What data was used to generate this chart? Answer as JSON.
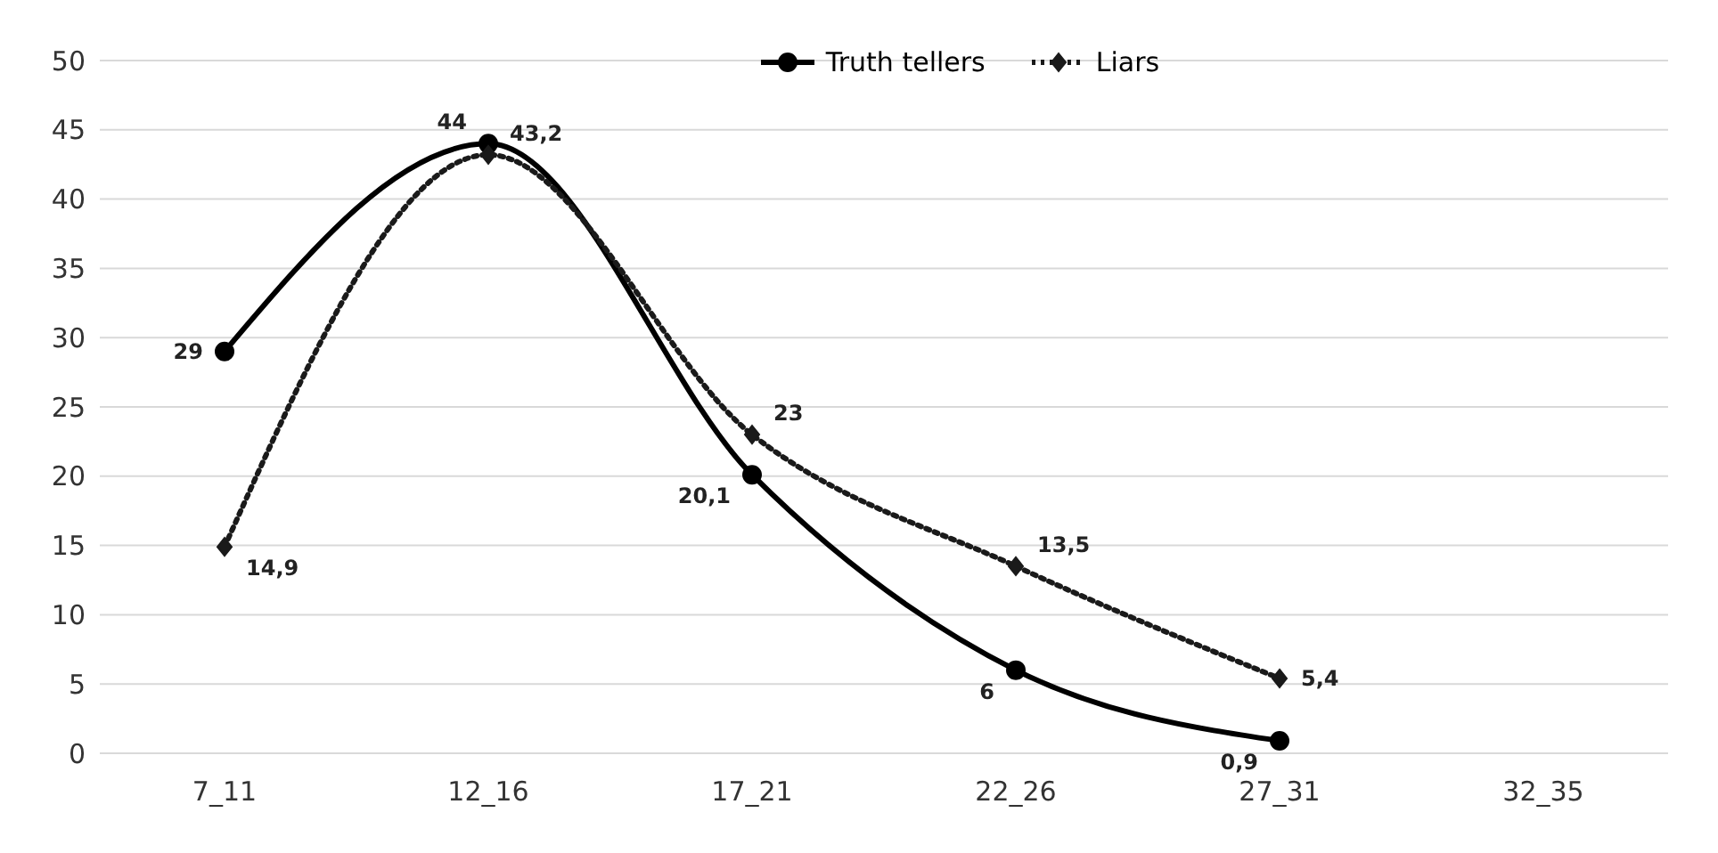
{
  "chart_data": {
    "type": "line",
    "categories": [
      "7_11",
      "12_16",
      "17_21",
      "22_26",
      "27_31",
      "32_35"
    ],
    "series": [
      {
        "name": "Truth tellers",
        "color": "#000000",
        "values": [
          29,
          44,
          20.1,
          6,
          0.9,
          null
        ],
        "value_labels": [
          "29",
          "44",
          "20,1",
          "6",
          "0,9",
          null
        ],
        "marker": "circle",
        "line_style": "solid"
      },
      {
        "name": "Liars",
        "color": "#1a1a1a",
        "values": [
          14.9,
          43.2,
          23,
          13.5,
          5.4,
          null
        ],
        "value_labels": [
          "14,9",
          "43,2",
          "23",
          "13,5",
          "5,4",
          null
        ],
        "marker": "diamond",
        "line_style": "dotted"
      }
    ],
    "ylim": [
      0,
      50
    ],
    "yticks": [
      0,
      5,
      10,
      15,
      20,
      25,
      30,
      35,
      40,
      45,
      50
    ],
    "grid": "y",
    "legend": "top"
  }
}
